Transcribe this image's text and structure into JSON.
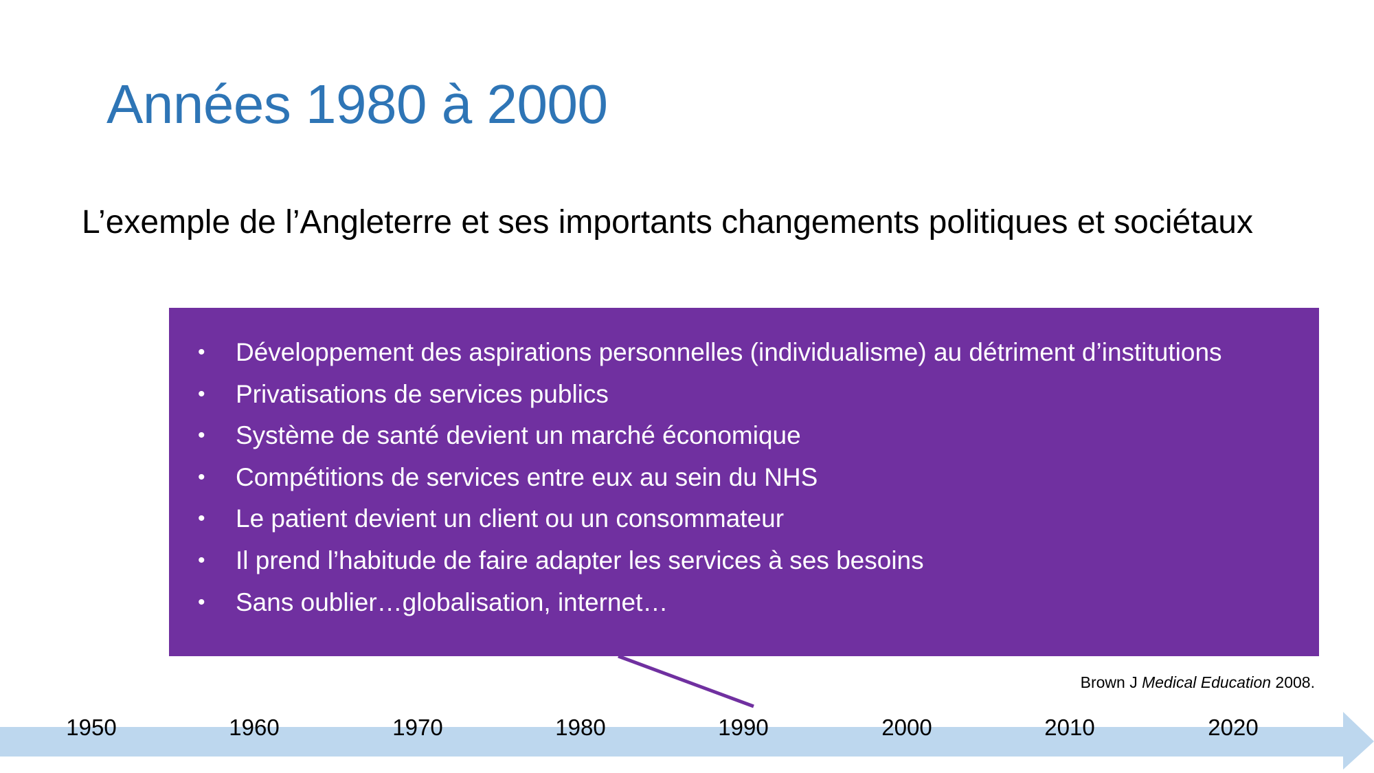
{
  "title": "Années 1980 à 2000",
  "subtitle": "L’exemple de l’Angleterre et ses importants changements politiques et sociétaux",
  "bullets": [
    "Développement des aspirations personnelles (individualisme) au détriment d’institutions",
    "Privatisations de services publics",
    "Système de santé devient un marché économique",
    "Compétitions de services entre eux au sein du NHS",
    "Le patient devient un client ou un consommateur",
    "Il prend l’habitude de faire adapter les services à ses besoins",
    "Sans oublier…globalisation, internet…"
  ],
  "bullet_symbol": "•",
  "citation": {
    "author": "Brown J ",
    "journal": "Medical Education",
    "year": " 2008."
  },
  "timeline": {
    "years": [
      "1950",
      "1960",
      "1970",
      "1980",
      "1990",
      "2000",
      "2010",
      "2020"
    ],
    "pointer_year": "1990"
  },
  "colors": {
    "title": "#2E75B6",
    "box": "#7030A0",
    "arrow": "#BDD7EE"
  }
}
